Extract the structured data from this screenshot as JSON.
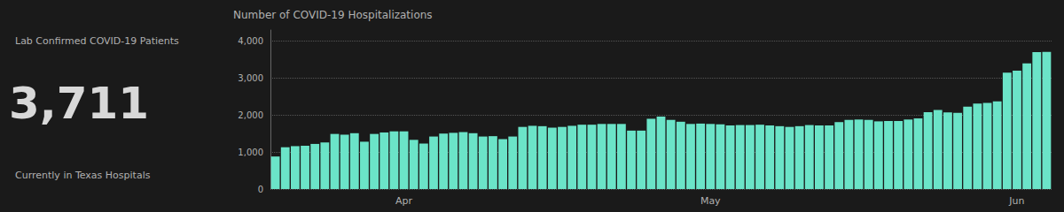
{
  "chart_data": {
    "type": "bar",
    "title": "Number of COVID-19 Hospitalizations",
    "annotations": [
      "Lab Confirmed COVID-19 Patients",
      "3,711",
      "Currently in Texas Hospitals"
    ],
    "categories": [
      null,
      null,
      null,
      null,
      null,
      null,
      null,
      null,
      null,
      null,
      null,
      null,
      null,
      "Apr",
      null,
      null,
      null,
      null,
      null,
      null,
      null,
      null,
      null,
      null,
      null,
      null,
      null,
      null,
      null,
      null,
      null,
      null,
      null,
      null,
      null,
      null,
      null,
      null,
      null,
      null,
      null,
      null,
      null,
      null,
      "May",
      null,
      null,
      null,
      null,
      null,
      null,
      null,
      null,
      null,
      null,
      null,
      null,
      null,
      null,
      null,
      null,
      null,
      null,
      null,
      null,
      null,
      null,
      null,
      null,
      null,
      null,
      null,
      null,
      null,
      null,
      "Jun",
      null,
      null,
      null
    ],
    "values": [
      880,
      1130,
      1160,
      1170,
      1220,
      1260,
      1490,
      1470,
      1510,
      1280,
      1490,
      1530,
      1560,
      1560,
      1330,
      1230,
      1420,
      1500,
      1520,
      1540,
      1510,
      1420,
      1430,
      1350,
      1420,
      1680,
      1710,
      1700,
      1660,
      1680,
      1710,
      1740,
      1740,
      1760,
      1760,
      1760,
      1580,
      1580,
      1900,
      1960,
      1870,
      1820,
      1760,
      1770,
      1760,
      1750,
      1720,
      1730,
      1730,
      1740,
      1720,
      1700,
      1680,
      1700,
      1730,
      1720,
      1720,
      1810,
      1870,
      1880,
      1870,
      1830,
      1840,
      1840,
      1880,
      1910,
      2080,
      2140,
      2070,
      2060,
      2230,
      2310,
      2330,
      2370,
      3150,
      3200,
      3400,
      3700,
      3711
    ],
    "color": "#6be4c8",
    "ylim": [
      0,
      4300
    ],
    "yticks": [
      0,
      {
        "value": 1000,
        "label": "1,000"
      },
      {
        "value": 2000,
        "label": "2,000"
      },
      {
        "value": 3000,
        "label": "3,000"
      },
      {
        "value": 4000,
        "label": "4,000"
      }
    ],
    "grid": true
  }
}
